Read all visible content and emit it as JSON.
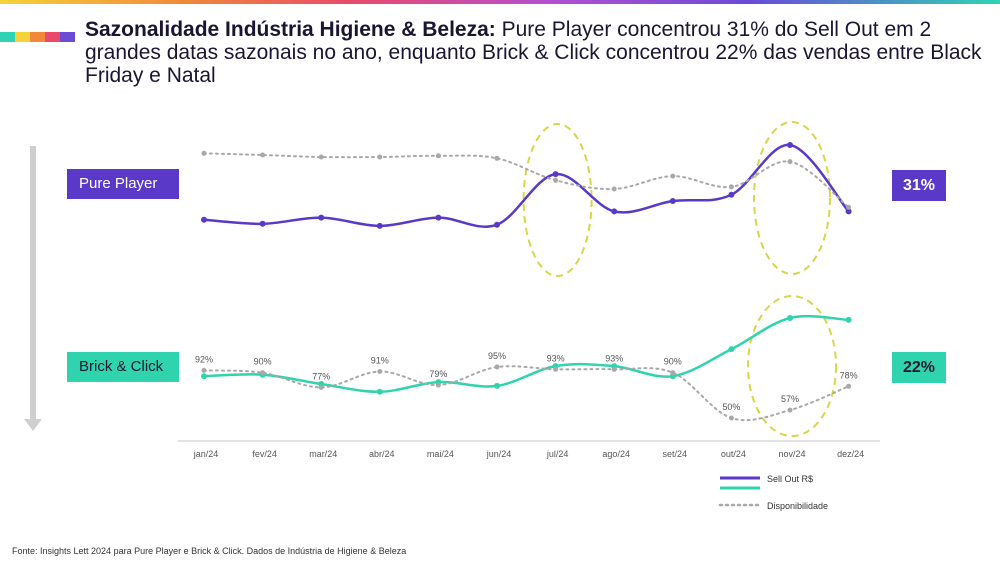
{
  "header": {
    "title_bold": "Sazonalidade Indústria Higiene & Beleza:",
    "title_rest": " Pure Player concentrou 31% do Sell Out em 2 grandes datas sazonais no ano, enquanto Brick & Click concentrou 22% das vendas entre Black Friday e Natal",
    "color_bar": [
      "#2fd3b4",
      "#f6d23a",
      "#f08a3a",
      "#e94a6b",
      "#6a4bd8"
    ]
  },
  "labels": {
    "pure_player": "Pure Player",
    "brick_click": "Brick & Click",
    "pure_player_pct": "31%",
    "brick_click_pct": "22%"
  },
  "footer": "Fonte: Insights Lett 2024 para Pure Player e Brick & Click. Dados de Indústria de Higiene & Beleza",
  "colors": {
    "purple": "#5a39c8",
    "teal": "#2fd3ad",
    "gray_dotted": "#a8a8a8",
    "highlight": "#d7d64a"
  },
  "chart_data": [
    {
      "type": "line",
      "panel": "pure_player",
      "categories": [
        "jan/24",
        "fev/24",
        "mar/24",
        "abr/24",
        "mai/24",
        "jun/24",
        "jul/24",
        "ago/24",
        "set/24",
        "out/24",
        "nov/24",
        "dez/24"
      ],
      "series": [
        {
          "name": "Sell Out R$",
          "style": "solid",
          "color": "#5a39c8",
          "values": [
            2,
            1,
            2.5,
            0.5,
            2.5,
            0.8,
            13,
            4,
            6.5,
            8,
            20,
            4
          ]
        },
        {
          "name": "Disponibilidade",
          "style": "dotted",
          "color": "#a8a8a8",
          "values": [
            18,
            17.6,
            17.1,
            17.1,
            17.4,
            16.8,
            11.5,
            9.4,
            12.5,
            9.9,
            16,
            5
          ]
        }
      ],
      "highlights": [
        "jul/24",
        "nov/24"
      ]
    },
    {
      "type": "line",
      "panel": "brick_click",
      "categories": [
        "jan/24",
        "fev/24",
        "mar/24",
        "abr/24",
        "mai/24",
        "jun/24",
        "jul/24",
        "ago/24",
        "set/24",
        "out/24",
        "nov/24",
        "dez/24"
      ],
      "series": [
        {
          "name": "Sell Out R$",
          "style": "solid",
          "color": "#2fd3ad",
          "values": [
            2,
            2.4,
            0,
            -2,
            0.5,
            -0.5,
            4.6,
            4.6,
            2,
            9,
            17,
            16.5
          ]
        },
        {
          "name": "Disponibilidade",
          "style": "dotted",
          "color": "#a8a8a8",
          "labels": [
            "92%",
            "90%",
            "77%",
            "91%",
            "79%",
            "95%",
            "93%",
            "93%",
            "90%",
            "50%",
            "57%",
            "78%"
          ],
          "values": [
            92,
            90,
            77,
            91,
            79,
            95,
            93,
            93,
            90,
            50,
            57,
            78
          ]
        }
      ],
      "highlights": [
        "nov/24"
      ]
    }
  ],
  "legend": [
    {
      "label": "Sell Out R$",
      "style": "solid-duo"
    },
    {
      "label": "Disponibilidade",
      "style": "dotted"
    }
  ]
}
